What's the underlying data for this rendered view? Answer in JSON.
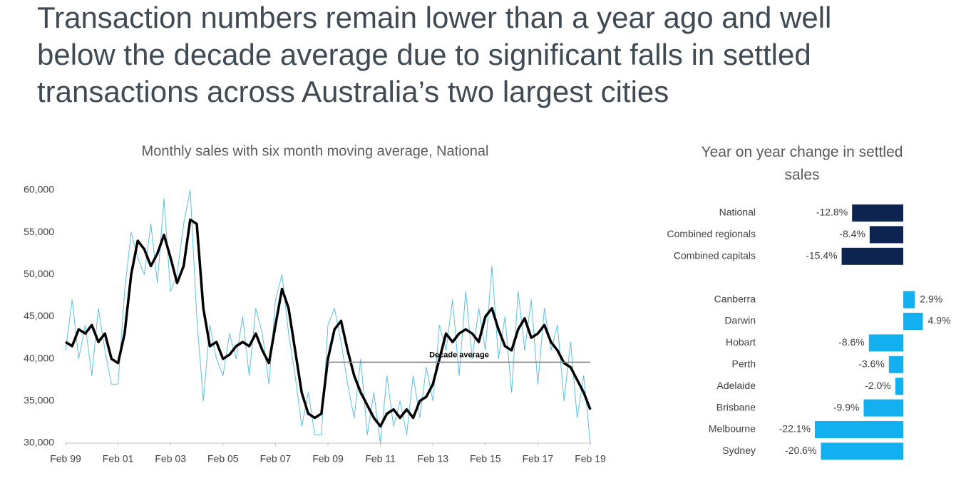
{
  "title": [
    "Transaction numbers remain lower than a year ago and well",
    "below the decade average due to significant falls in settled",
    "transactions across Australia’s two largest cities"
  ],
  "chart_data": [
    {
      "type": "line",
      "title": "Monthly sales with six month moving average, National",
      "x": [
        "1999-02",
        "1999-05",
        "1999-08",
        "1999-11",
        "2000-02",
        "2000-05",
        "2000-08",
        "2000-11",
        "2001-02",
        "2001-05",
        "2001-08",
        "2001-11",
        "2002-02",
        "2002-05",
        "2002-08",
        "2002-11",
        "2003-02",
        "2003-05",
        "2003-08",
        "2003-11",
        "2004-02",
        "2004-05",
        "2004-08",
        "2004-11",
        "2005-02",
        "2005-05",
        "2005-08",
        "2005-11",
        "2006-02",
        "2006-05",
        "2006-08",
        "2006-11",
        "2007-02",
        "2007-05",
        "2007-08",
        "2007-11",
        "2008-02",
        "2008-05",
        "2008-08",
        "2008-11",
        "2009-02",
        "2009-05",
        "2009-08",
        "2009-11",
        "2010-02",
        "2010-05",
        "2010-08",
        "2010-11",
        "2011-02",
        "2011-05",
        "2011-08",
        "2011-11",
        "2012-02",
        "2012-05",
        "2012-08",
        "2012-11",
        "2013-02",
        "2013-05",
        "2013-08",
        "2013-11",
        "2014-02",
        "2014-05",
        "2014-08",
        "2014-11",
        "2015-02",
        "2015-05",
        "2015-08",
        "2015-11",
        "2016-02",
        "2016-05",
        "2016-08",
        "2016-11",
        "2017-02",
        "2017-05",
        "2017-08",
        "2017-11",
        "2018-02",
        "2018-05",
        "2018-08",
        "2018-11",
        "2019-02"
      ],
      "series": [
        {
          "color": "#5bc0e0",
          "line_width": 1,
          "values": [
            41000,
            47000,
            40000,
            44000,
            38000,
            46000,
            41000,
            37000,
            37000,
            48000,
            55000,
            52000,
            50000,
            56000,
            49000,
            59000,
            48000,
            50000,
            56000,
            60000,
            45000,
            35000,
            44000,
            40000,
            38000,
            43000,
            40000,
            45000,
            38000,
            46000,
            43000,
            37000,
            47000,
            50000,
            43000,
            38000,
            32000,
            36000,
            31000,
            31000,
            44000,
            46000,
            42000,
            37000,
            33000,
            40000,
            31000,
            36000,
            30000,
            38000,
            32000,
            35000,
            31000,
            38000,
            33000,
            39000,
            35000,
            44000,
            41000,
            47000,
            38000,
            48000,
            40000,
            46000,
            41000,
            51000,
            40000,
            45000,
            36000,
            48000,
            41000,
            47000,
            37000,
            46000,
            41000,
            44000,
            35000,
            42000,
            33000,
            38000,
            30000
          ]
        },
        {
          "color": "#000000",
          "line_width": 3.5,
          "values": [
            42000,
            41500,
            43500,
            43000,
            44000,
            42000,
            43000,
            40000,
            39500,
            43000,
            50000,
            54000,
            53000,
            51000,
            52500,
            54700,
            52000,
            49000,
            51000,
            56500,
            56000,
            46000,
            41500,
            42000,
            40000,
            40500,
            41500,
            42000,
            41500,
            43000,
            41000,
            39500,
            44000,
            48300,
            46000,
            41000,
            36000,
            33500,
            33000,
            33500,
            40000,
            43500,
            44500,
            41000,
            38000,
            36000,
            34500,
            33000,
            32000,
            33500,
            34000,
            33000,
            34000,
            33000,
            35000,
            35500,
            37000,
            40000,
            43000,
            42000,
            43000,
            43500,
            43000,
            42000,
            45000,
            46000,
            43500,
            41500,
            41000,
            43500,
            44800,
            42500,
            43000,
            44000,
            42000,
            41000,
            39500,
            39000,
            37500,
            36000,
            34000
          ]
        }
      ],
      "xlim": [
        "1999-02",
        "2019-02"
      ],
      "xticks": [
        {
          "value": "1999-02",
          "label": "Feb 99"
        },
        {
          "value": "2001-02",
          "label": "Feb 01"
        },
        {
          "value": "2003-02",
          "label": "Feb 03"
        },
        {
          "value": "2005-02",
          "label": "Feb 05"
        },
        {
          "value": "2007-02",
          "label": "Feb 07"
        },
        {
          "value": "2009-02",
          "label": "Feb 09"
        },
        {
          "value": "2011-02",
          "label": "Feb 11"
        },
        {
          "value": "2013-02",
          "label": "Feb 13"
        },
        {
          "value": "2015-02",
          "label": "Feb 15"
        },
        {
          "value": "2017-02",
          "label": "Feb 17"
        },
        {
          "value": "2019-02",
          "label": "Feb 19"
        }
      ],
      "ylim": [
        30000,
        60000
      ],
      "yticks": [
        {
          "value": 30000,
          "label": "30,000"
        },
        {
          "value": 35000,
          "label": "35,000"
        },
        {
          "value": 40000,
          "label": "40,000"
        },
        {
          "value": 45000,
          "label": "45,000"
        },
        {
          "value": 50000,
          "label": "50,000"
        },
        {
          "value": 55000,
          "label": "55,000"
        },
        {
          "value": 60000,
          "label": "60,000"
        }
      ],
      "annotations": [
        {
          "text": "Decade average",
          "value": 39600,
          "x": [
            "2009-02",
            "2019-02"
          ],
          "color": "#7f7f7f"
        }
      ]
    },
    {
      "type": "bar",
      "orientation": "horizontal",
      "title": "Year on year change in settled sales",
      "categories": [
        "National",
        "Combined regionals",
        "Combined capitals",
        null,
        "Canberra",
        "Darwin",
        "Hobart",
        "Perth",
        "Adelaide",
        "Brisbane",
        "Melbourne",
        "Sydney"
      ],
      "values": [
        -12.8,
        -8.4,
        -15.4,
        null,
        2.9,
        4.9,
        -8.6,
        -3.6,
        -2.0,
        -9.9,
        -22.1,
        -20.6
      ],
      "value_labels": [
        "-12.8%",
        "-8.4%",
        "-15.4%",
        null,
        "2.9%",
        "4.9%",
        "-8.6%",
        "-3.6%",
        "-2.0%",
        "-9.9%",
        "-22.1%",
        "-20.6%"
      ],
      "colors": [
        "#0d2350",
        "#0d2350",
        "#0d2350",
        null,
        "#12b0ef",
        "#12b0ef",
        "#12b0ef",
        "#12b0ef",
        "#12b0ef",
        "#12b0ef",
        "#12b0ef",
        "#12b0ef"
      ]
    }
  ]
}
